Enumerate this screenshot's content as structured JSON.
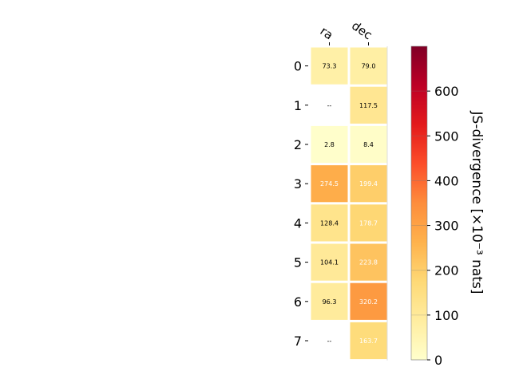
{
  "chart_data": {
    "type": "heatmap",
    "columns": [
      "ra",
      "dec"
    ],
    "rows": [
      "0",
      "1",
      "2",
      "3",
      "4",
      "5",
      "6",
      "7"
    ],
    "values": [
      [
        73.3,
        79.0
      ],
      [
        null,
        117.5
      ],
      [
        2.8,
        8.4
      ],
      [
        274.5,
        199.4
      ],
      [
        128.4,
        178.7
      ],
      [
        104.1,
        223.8
      ],
      [
        96.3,
        320.2
      ],
      [
        null,
        163.7
      ]
    ],
    "missing_label": "--",
    "colorbar": {
      "label": "JS-divergence [×10⁻³ nats]",
      "range": [
        0,
        700
      ],
      "ticks": [
        0,
        100,
        200,
        300,
        400,
        500,
        600
      ],
      "colormap": "YlOrRd"
    }
  }
}
